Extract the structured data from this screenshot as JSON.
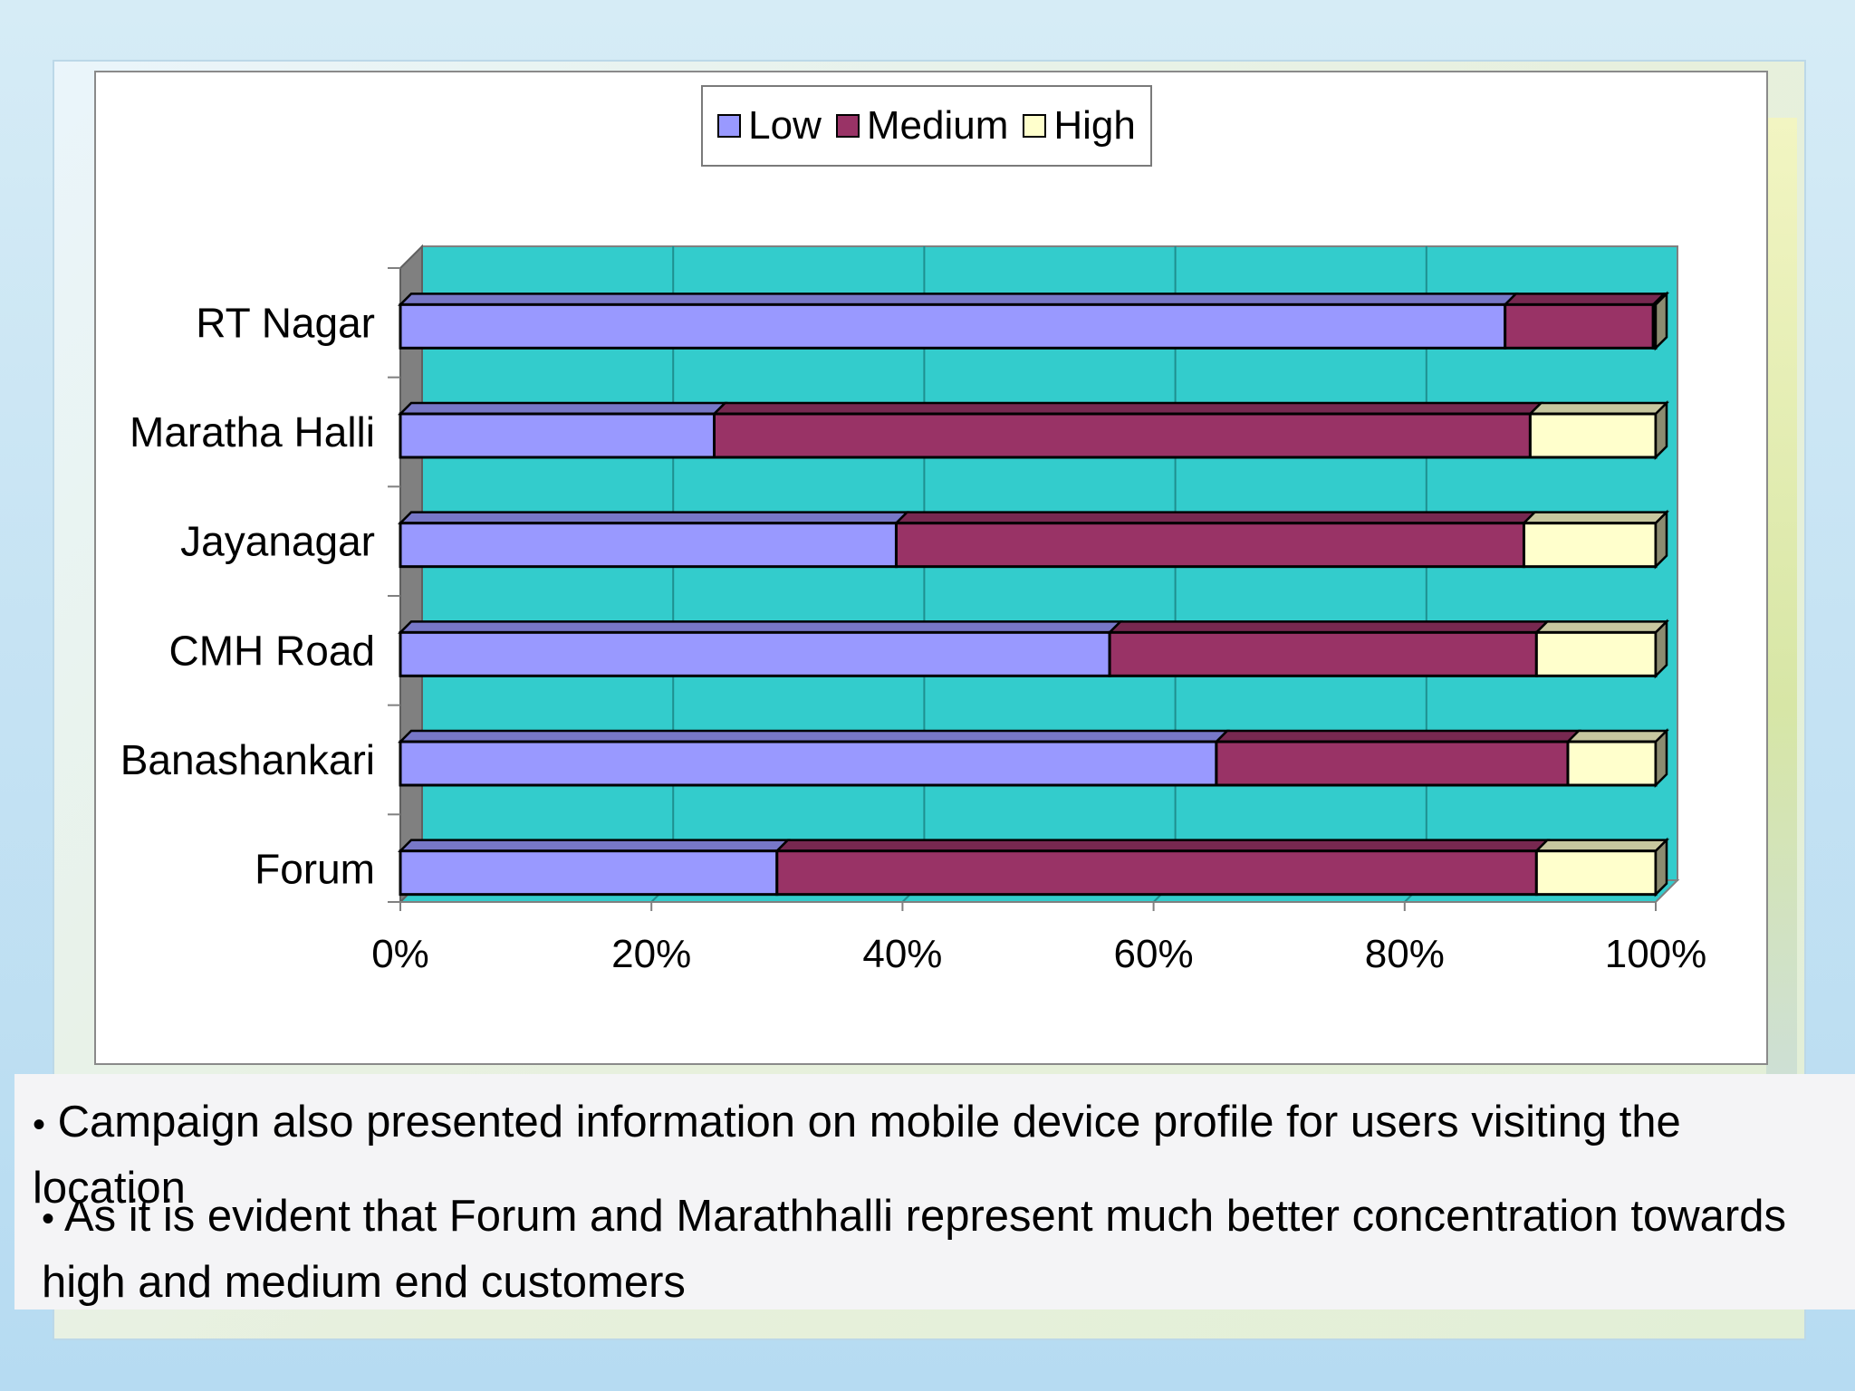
{
  "chart_data": {
    "type": "bar",
    "orientation": "horizontal",
    "stacking": "percent",
    "categories": [
      "RT Nagar",
      "Maratha Halli",
      "Jayanagar",
      "CMH Road",
      "Banashankari",
      "Forum"
    ],
    "series": [
      {
        "name": "Low",
        "color": "#9999ff",
        "values": [
          88,
          25,
          39.5,
          56.5,
          65,
          30
        ]
      },
      {
        "name": "Medium",
        "color": "#993366",
        "values": [
          11.8,
          65,
          50,
          34,
          28,
          60.5
        ]
      },
      {
        "name": "High",
        "color": "#ffffcc",
        "values": [
          0.2,
          10,
          10.5,
          9.5,
          7,
          9.5
        ]
      }
    ],
    "xticks": [
      "0%",
      "20%",
      "40%",
      "60%",
      "80%",
      "100%"
    ],
    "xlim": [
      0,
      100
    ],
    "grid": true,
    "legend_position": "top",
    "plot_background": "#33cccc"
  },
  "legend": [
    {
      "label": "Low",
      "color": "#9999ff"
    },
    {
      "label": "Medium",
      "color": "#993366"
    },
    {
      "label": "High",
      "color": "#ffffcc"
    }
  ],
  "bullets": [
    "Campaign also presented information on mobile device profile for users visiting the location",
    "As it is evident that  Forum and Marathhalli represent much better concentration towards high and medium end customers"
  ]
}
